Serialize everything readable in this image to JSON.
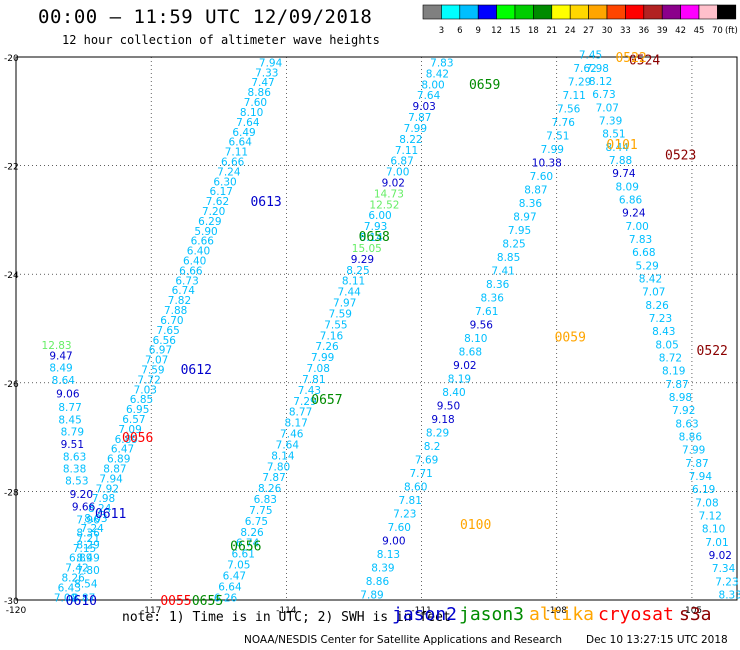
{
  "header": {
    "title": "00:00 – 11:59 UTC 12/09/2018",
    "subtitle": "12 hour collection of altimeter wave heights"
  },
  "colorbar": {
    "labels": [
      "3",
      "6",
      "9",
      "12",
      "15",
      "18",
      "21",
      "24",
      "27",
      "30",
      "33",
      "36",
      "39",
      "42",
      "45",
      "70"
    ],
    "unit": "(ft)",
    "colors": [
      "#808080",
      "#00ffff",
      "#00bfff",
      "#0000ff",
      "#00ff00",
      "#00cd00",
      "#008b00",
      "#ffff00",
      "#ffd700",
      "#ffa500",
      "#ff4500",
      "#ff0000",
      "#b22222",
      "#8b008b",
      "#ff00ff",
      "#ffc0cb",
      "#000000"
    ]
  },
  "footer": {
    "note": "note: 1) Time is in UTC; 2) SWH is in feet",
    "credit": "NOAA/NESDIS Center for Satellite Applications and Research",
    "timestamp": "Dec 10 13:27:15 UTC 2018"
  },
  "satellites": [
    {
      "name": "jason2",
      "color": "#0000cc"
    },
    {
      "name": "jason3",
      "color": "#008b00"
    },
    {
      "name": "altika",
      "color": "#ffa500"
    },
    {
      "name": "cryosat",
      "color": "#ff0000"
    },
    {
      "name": "s3a",
      "color": "#8b0000"
    }
  ],
  "chart_data": {
    "type": "scatter",
    "xlim": [
      -120,
      -104
    ],
    "ylim": [
      -30,
      -20
    ],
    "xticks": [
      "-120",
      "-117",
      "-114",
      "-111",
      "-108",
      "-105"
    ],
    "yticks": [
      "-20",
      "-22",
      "-24",
      "-26",
      "-28",
      "-30"
    ],
    "grid": true,
    "tracks": [
      {
        "color": "#00bfff",
        "lat_start": -20.1,
        "lat_end": -29.95,
        "lon_start": -114.35,
        "lon_end": -118.9,
        "values": [
          "7.94",
          "7.33",
          "7.47",
          "8.86",
          "7.60",
          "8.10",
          "7.64",
          "6.49",
          "6.64",
          "7.11",
          "6.66",
          "7.24",
          "6.30",
          "6.17",
          "7.62",
          "7.20",
          "6.29",
          "5.90",
          "6.66",
          "6.40",
          "6.40",
          "6.66",
          "6.73",
          "6.74",
          "7.82",
          "7.88",
          "6.70",
          "7.65",
          "6.56",
          "6.97",
          "7.07",
          "7.59",
          "7.72",
          "7.03",
          "6.85",
          "6.95",
          "6.57",
          "7.09",
          "6.89",
          "6.47",
          "6.89",
          "8.87",
          "7.94",
          "7.92",
          "7.98",
          "8.24",
          "8.03",
          "7.24",
          "7.21",
          "7.15",
          "6.89",
          "7.42",
          "8.26",
          "6.43",
          "7.09"
        ]
      },
      {
        "color": "#00bfff",
        "lat_start": -20.1,
        "lat_end": -29.95,
        "lon_start": -110.55,
        "lon_end": -115.35,
        "values": [
          "7.83",
          "8.42",
          "8.00",
          "7.64",
          "9.03",
          "7.87",
          "7.99",
          "8.22",
          "7.11",
          "6.87",
          "7.00",
          "9.02",
          "14.73",
          "12.52",
          "6.00",
          "7.93",
          "8.14",
          "15.05",
          "9.29",
          "8.25",
          "8.11",
          "7.44",
          "7.97",
          "7.59",
          "7.55",
          "7.16",
          "7.26",
          "7.99",
          "7.08",
          "7.81",
          "7.43",
          "7.29",
          "8.77",
          "8.17",
          "7.46",
          "7.64",
          "8.14",
          "7.80",
          "7.87",
          "8.26",
          "6.83",
          "7.75",
          "6.75",
          "8.26",
          "6.74",
          "6.61",
          "7.05",
          "6.47",
          "6.64",
          "6.26"
        ]
      },
      {
        "color": "#00bfff",
        "lat_start": -19.95,
        "lat_end": -29.9,
        "lon_start": -107.25,
        "lon_end": -112.1,
        "values": [
          "7.45",
          "7.62",
          "7.29",
          "7.11",
          "7.56",
          "7.76",
          "7.51",
          "7.99",
          "10.38",
          "7.60",
          "8.87",
          "8.36",
          "8.97",
          "7.95",
          "8.25",
          "8.85",
          "7.41",
          "8.36",
          "8.36",
          "7.61",
          "9.56",
          "8.10",
          "8.68",
          "9.02",
          "8.19",
          "8.40",
          "9.50",
          "9.18",
          "8.29",
          "8.2",
          "7.69",
          "7.71",
          "8.60",
          "7.81",
          "7.23",
          "7.60",
          "9.00",
          "8.13",
          "8.39",
          "8.86",
          "7.89"
        ]
      },
      {
        "color": "#00bfff",
        "lat_start": -20.2,
        "lat_end": -29.9,
        "lon_start": -107.1,
        "lon_end": -104.15,
        "values": [
          "7.98",
          "8.12",
          "6.73",
          "7.07",
          "7.39",
          "8.51",
          "8.44",
          "7.88",
          "9.74",
          "8.09",
          "6.86",
          "9.24",
          "7.00",
          "7.83",
          "6.68",
          "5.29",
          "8.42",
          "7.07",
          "8.26",
          "7.23",
          "8.43",
          "8.05",
          "8.72",
          "8.19",
          "7.87",
          "8.98",
          "7.92",
          "8.63",
          "8.86",
          "7.99",
          "7.87",
          "7.94",
          "6.19",
          "7.08",
          "7.12",
          "8.10",
          "7.01",
          "9.02",
          "7.34",
          "7.23",
          "8.33"
        ]
      }
    ],
    "extra_labels": [
      {
        "text": "12.83",
        "color": "#66ee66",
        "lon": -119.1,
        "lat": -25.3
      },
      {
        "text": "9.47",
        "color": "#0000cc",
        "lon": -119.0,
        "lat": -25.5
      },
      {
        "text": "8.49",
        "color": "#00bfff",
        "lon": -119.0,
        "lat": -25.72
      },
      {
        "text": "8.64",
        "color": "#00bfff",
        "lon": -118.95,
        "lat": -25.95
      },
      {
        "text": "9.06",
        "color": "#0000cc",
        "lon": -118.85,
        "lat": -26.2
      },
      {
        "text": "8.77",
        "color": "#00bfff",
        "lon": -118.8,
        "lat": -26.45
      },
      {
        "text": "8.45",
        "color": "#00bfff",
        "lon": -118.8,
        "lat": -26.68
      },
      {
        "text": "8.79",
        "color": "#00bfff",
        "lon": -118.75,
        "lat": -26.9
      },
      {
        "text": "9.51",
        "color": "#0000cc",
        "lon": -118.75,
        "lat": -27.13
      },
      {
        "text": "8.63",
        "color": "#00bfff",
        "lon": -118.7,
        "lat": -27.36
      },
      {
        "text": "8.38",
        "color": "#00bfff",
        "lon": -118.7,
        "lat": -27.58
      },
      {
        "text": "8.53",
        "color": "#00bfff",
        "lon": -118.65,
        "lat": -27.8
      },
      {
        "text": "9.20",
        "color": "#0000cc",
        "lon": -118.55,
        "lat": -28.05
      },
      {
        "text": "9.66",
        "color": "#0000cc",
        "lon": -118.5,
        "lat": -28.28
      },
      {
        "text": "7.96",
        "color": "#00bfff",
        "lon": -118.4,
        "lat": -28.52
      },
      {
        "text": "8.36",
        "color": "#00bfff",
        "lon": -118.4,
        "lat": -28.76
      },
      {
        "text": "8.29",
        "color": "#00bfff",
        "lon": -118.4,
        "lat": -28.98
      },
      {
        "text": "8.49",
        "color": "#00bfff",
        "lon": -118.4,
        "lat": -29.22
      },
      {
        "text": "7.80",
        "color": "#00bfff",
        "lon": -118.4,
        "lat": -29.45
      },
      {
        "text": "8.54",
        "color": "#00bfff",
        "lon": -118.45,
        "lat": -29.7
      },
      {
        "text": "8.87",
        "color": "#00bfff",
        "lon": -118.5,
        "lat": -29.95
      }
    ],
    "passes": [
      {
        "id": "0524",
        "color": "#8b0000",
        "lon": -106.05,
        "lat": -20.05
      },
      {
        "id": "0522",
        "color": "#ffa500",
        "lon": -106.35,
        "lat": -20.0
      },
      {
        "id": "0659",
        "color": "#008b00",
        "lon": -109.6,
        "lat": -20.5
      },
      {
        "id": "0523",
        "color": "#8b0000",
        "lon": -105.25,
        "lat": -21.8
      },
      {
        "id": "0101",
        "color": "#ffa500",
        "lon": -106.55,
        "lat": -21.6
      },
      {
        "id": "0613",
        "color": "#0000cc",
        "lon": -114.45,
        "lat": -22.65
      },
      {
        "id": "0658",
        "color": "#008b00",
        "lon": -112.05,
        "lat": -23.3
      },
      {
        "id": "0059",
        "color": "#ffa500",
        "lon": -107.7,
        "lat": -25.15
      },
      {
        "id": "0522",
        "color": "#8b0000",
        "lon": -104.55,
        "lat": -25.4
      },
      {
        "id": "0612",
        "color": "#0000cc",
        "lon": -116.0,
        "lat": -25.75
      },
      {
        "id": "0657",
        "color": "#008b00",
        "lon": -113.1,
        "lat": -26.3
      },
      {
        "id": "0056",
        "color": "#ff0000",
        "lon": -117.3,
        "lat": -27.0
      },
      {
        "id": "0611",
        "color": "#0000cc",
        "lon": -117.9,
        "lat": -28.4
      },
      {
        "id": "0100",
        "color": "#ffa500",
        "lon": -109.8,
        "lat": -28.6
      },
      {
        "id": "0656",
        "color": "#008b00",
        "lon": -114.9,
        "lat": -29.0
      },
      {
        "id": "0610",
        "color": "#0000cc",
        "lon": -118.55,
        "lat": -30.0
      },
      {
        "id": "0055",
        "color": "#ff0000",
        "lon": -116.45,
        "lat": -30.0
      },
      {
        "id": "0655",
        "color": "#008b00",
        "lon": -115.75,
        "lat": -30.0
      }
    ]
  }
}
